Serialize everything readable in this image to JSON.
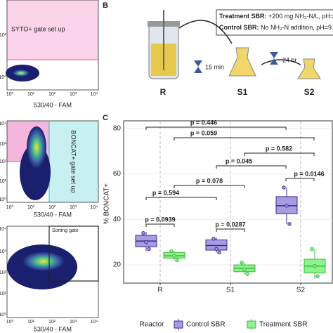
{
  "flow_panels": [
    {
      "gate_label": "SYTO+ gate set up",
      "x_label": "530/40 - FAM",
      "x_ticks": [
        "10⁰",
        "10¹",
        "10²",
        "10³",
        "10⁴"
      ],
      "y_ticks": [
        "10²",
        "10⁰"
      ]
    },
    {
      "gate_label": "BONCAT+ gate set up",
      "x_label": "530/40 - FAM",
      "x_ticks": [
        "10⁰",
        "10¹",
        "10²",
        "10³",
        "10⁴"
      ],
      "y_ticks": [
        "10⁴",
        "10³",
        "10²",
        "10¹",
        "10⁰"
      ]
    },
    {
      "gate_label": "Sorting gate",
      "x_label": "530/40 - FAM",
      "x_ticks": [
        "10⁰",
        "10¹",
        "10²",
        "10³",
        "10⁴"
      ],
      "y_ticks": [
        "10⁴",
        "10³",
        "10²",
        "10¹",
        "10⁰"
      ]
    }
  ],
  "panel_b": {
    "label": "B",
    "treatment": {
      "name": "Treatment SBR:",
      "text": " +200 mg NH₃-N/L, pH="
    },
    "control": {
      "name": "Control SBR:",
      "text": " No NH₃-N addition, pH=9."
    },
    "stages": [
      "R",
      "S1",
      "S2"
    ],
    "times": [
      "15 min",
      "24 hr"
    ]
  },
  "chart_data": {
    "type": "box",
    "label": "C",
    "y_label": "% BONCAT+",
    "categories": [
      "R",
      "S1",
      "S2"
    ],
    "ylim": [
      12,
      83
    ],
    "yticks": [
      20,
      40,
      60,
      80
    ],
    "grid": true,
    "legend_title": "Reactor",
    "series": [
      {
        "name": "Control SBR",
        "color": "#a99be0",
        "edge": "#3a2a96",
        "low": [
          26,
          25.5,
          38
        ],
        "q1": [
          28,
          26.5,
          42.5
        ],
        "median": [
          30.5,
          28.5,
          46
        ],
        "q3": [
          33,
          31,
          50
        ],
        "high": [
          34.5,
          32,
          54
        ],
        "points": [
          [
            34,
            30,
            27
          ],
          [
            31.5,
            27,
            25.5
          ],
          [
            54,
            46,
            38
          ]
        ]
      },
      {
        "name": "Treatment SBR",
        "color": "#8ef28e",
        "edge": "#39b939",
        "low": [
          22,
          16,
          14
        ],
        "q1": [
          23,
          17,
          16.5
        ],
        "median": [
          24,
          18.5,
          19.5
        ],
        "q3": [
          25.5,
          20,
          22.5
        ],
        "high": [
          26,
          21,
          27
        ],
        "points": [
          [
            26,
            24,
            22
          ],
          [
            21,
            18,
            16
          ],
          [
            27,
            19.5,
            15
          ]
        ]
      }
    ],
    "p_values": [
      "p = 0.446",
      "p = 0.059",
      "p = 0.582",
      "p = 0.045",
      "p = 0.0146",
      "p = 0.078",
      "p = 0.594",
      "p = 0.0939",
      "p = 0.0287"
    ]
  }
}
